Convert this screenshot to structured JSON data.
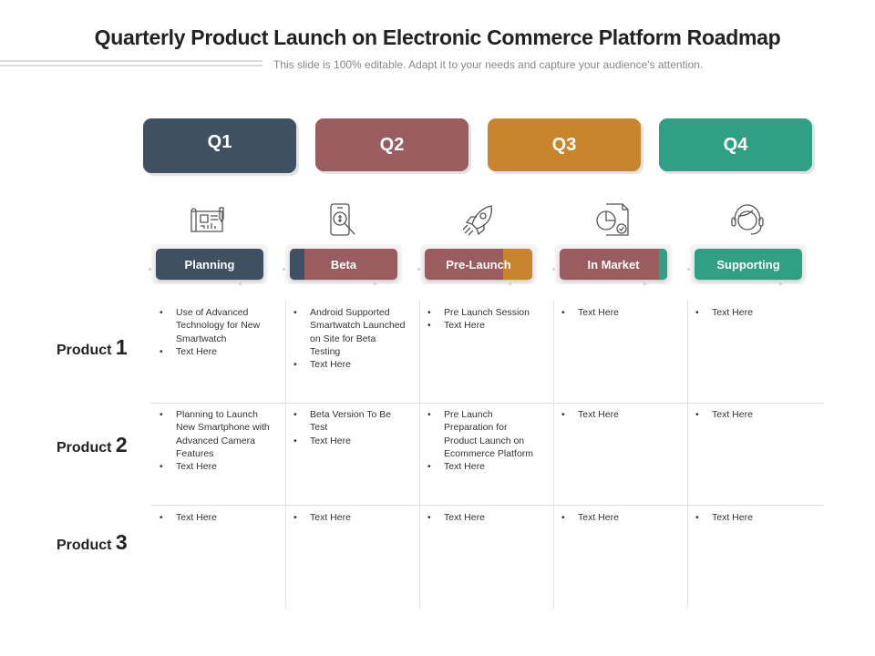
{
  "title": "Quarterly Product Launch on Electronic Commerce Platform Roadmap",
  "subtitle": "This slide is 100% editable. Adapt it to your needs and capture your audience's attention.",
  "quarters": [
    {
      "label": "Q1",
      "color": "#3f5062"
    },
    {
      "label": "Q2",
      "color": "#9a5c5e"
    },
    {
      "label": "Q3",
      "color": "#c8852b"
    },
    {
      "label": "Q4",
      "color": "#2fa083"
    }
  ],
  "icons": [
    "blueprint-icon",
    "phone-magnifier-icon",
    "rocket-icon",
    "report-chart-icon",
    "headset-support-icon"
  ],
  "phases": [
    {
      "label": "Planning",
      "color": "#3f5062"
    },
    {
      "label": "Beta",
      "color": "#9a5c5e",
      "accent": "#3f5062"
    },
    {
      "label": "Pre-Launch",
      "color": "#9a5c5e",
      "accent": "#c8852b"
    },
    {
      "label": "In Market",
      "color": "#9a5c5e",
      "accent": "#2fa083"
    },
    {
      "label": "Supporting",
      "color": "#2fa083"
    }
  ],
  "products": [
    {
      "label": "Product",
      "num": "1"
    },
    {
      "label": "Product",
      "num": "2"
    },
    {
      "label": "Product",
      "num": "3"
    }
  ],
  "grid": [
    [
      [
        "Use of Advanced Technology for New Smartwatch",
        "Text Here"
      ],
      [
        "Android Supported Smartwatch Launched on Site for Beta Testing",
        "Text Here"
      ],
      [
        "Pre Launch Session",
        "Text Here"
      ],
      [
        "Text Here"
      ],
      [
        "Text Here"
      ]
    ],
    [
      [
        "Planning to Launch New Smartphone with Advanced Camera Features",
        "Text Here"
      ],
      [
        "Beta Version To Be Test",
        "Text Here"
      ],
      [
        "Pre Launch Preparation for Product Launch on Ecommerce Platform",
        "Text Here"
      ],
      [
        "Text Here"
      ],
      [
        "Text Here"
      ]
    ],
    [
      [
        "Text Here"
      ],
      [
        "Text Here"
      ],
      [
        "Text Here"
      ],
      [
        "Text Here"
      ],
      [
        "Text Here"
      ]
    ]
  ]
}
